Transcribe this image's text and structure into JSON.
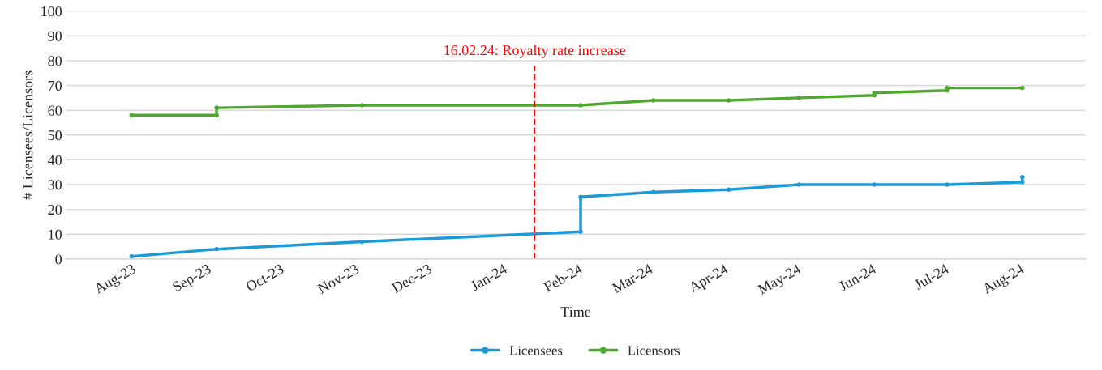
{
  "chart_data": {
    "type": "line",
    "xlabel": "Time",
    "ylabel": "# Licensees/Licensors",
    "x": [
      "2023-08-01",
      "2023-09-05",
      "2023-11-04",
      "2024-02-02",
      "2024-02-02",
      "2024-03-03",
      "2024-04-03",
      "2024-05-02",
      "2024-06-02",
      "2024-07-02",
      "2024-08-02",
      "2024-08-02"
    ],
    "series": [
      {
        "name": "Licensees",
        "color": "#1b9ad6",
        "values": [
          1,
          4,
          7,
          11,
          25,
          27,
          28,
          30,
          30,
          30,
          31,
          33
        ]
      },
      {
        "name": "Licensors",
        "color": "#4ea72e",
        "x": [
          "2023-08-01",
          "2023-09-05",
          "2023-09-05",
          "2023-11-04",
          "2024-02-02",
          "2024-03-03",
          "2024-04-03",
          "2024-05-02",
          "2024-06-02",
          "2024-06-02",
          "2024-07-02",
          "2024-07-02",
          "2024-08-02"
        ],
        "values": [
          58,
          58,
          61,
          62,
          62,
          64,
          64,
          65,
          66,
          67,
          68,
          69,
          69
        ]
      }
    ],
    "xlim": [
      "2023-07-05",
      "2024-08-28"
    ],
    "xticks": [
      {
        "value": "2023-08-01",
        "label": "Aug-23"
      },
      {
        "value": "2023-09-01",
        "label": "Sep-23"
      },
      {
        "value": "2023-10-01",
        "label": "Oct-23"
      },
      {
        "value": "2023-11-01",
        "label": "Nov-23"
      },
      {
        "value": "2023-12-01",
        "label": "Dec-23"
      },
      {
        "value": "2024-01-01",
        "label": "Jan-24"
      },
      {
        "value": "2024-02-01",
        "label": "Feb-24"
      },
      {
        "value": "2024-03-01",
        "label": "Mar-24"
      },
      {
        "value": "2024-04-01",
        "label": "Apr-24"
      },
      {
        "value": "2024-05-01",
        "label": "May-24"
      },
      {
        "value": "2024-06-01",
        "label": "Jun-24"
      },
      {
        "value": "2024-07-01",
        "label": "Jul-24"
      },
      {
        "value": "2024-08-01",
        "label": "Aug-24"
      }
    ],
    "ylim": [
      0,
      100
    ],
    "yticks": [
      0,
      10,
      20,
      30,
      40,
      50,
      60,
      70,
      80,
      90,
      100
    ],
    "ref_lines": [
      {
        "axis": "x",
        "value": "2024-01-14",
        "label": "16.02.24: Royalty rate increase",
        "color": "#ff0000",
        "line_style": "dashed"
      }
    ],
    "grid": "y",
    "legend": "bottom",
    "marker": "circle",
    "line_style": "solid"
  }
}
